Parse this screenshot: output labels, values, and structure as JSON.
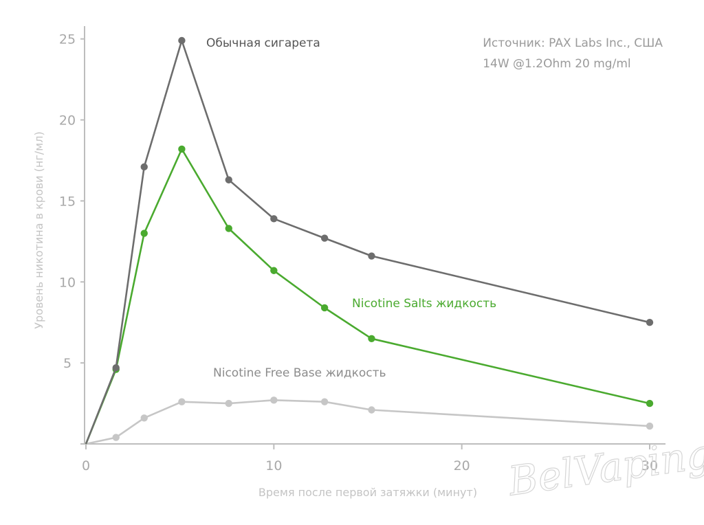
{
  "source": {
    "line1": "Источник: PAX Labs Inc., США",
    "line2": "14W @1.2Ohm 20 mg/ml"
  },
  "watermark": "BelVaping",
  "chart_data": {
    "type": "line",
    "xlabel": "Время после первой затяжки (минут)",
    "ylabel": "Уровень никотина в крови (нг/мл)",
    "xlim": [
      0,
      31
    ],
    "ylim": [
      0,
      26
    ],
    "xticks": [
      0,
      10,
      20,
      30
    ],
    "yticks": [
      5,
      10,
      15,
      20,
      25
    ],
    "grid": false,
    "series": [
      {
        "name": "Обычная сигарета",
        "color": "#6d6d6d",
        "x": [
          0,
          1.6,
          3.1,
          5.1,
          7.6,
          10.0,
          12.7,
          15.2,
          30.0
        ],
        "y": [
          0,
          4.7,
          17.1,
          24.9,
          16.3,
          13.9,
          12.7,
          11.6,
          7.5
        ]
      },
      {
        "name": "Nicotine Salts жидкость",
        "color": "#4aaa2f",
        "x": [
          0,
          1.6,
          3.1,
          5.1,
          7.6,
          10.0,
          12.7,
          15.2,
          30.0
        ],
        "y": [
          0,
          4.6,
          13.0,
          18.2,
          13.3,
          10.7,
          8.4,
          6.5,
          2.5
        ]
      },
      {
        "name": "Nicotine Free Base жидкость",
        "color": "#c6c6c6",
        "x": [
          0,
          1.6,
          3.1,
          5.1,
          7.6,
          10.0,
          12.7,
          15.2,
          30.0
        ],
        "y": [
          0,
          0.4,
          1.6,
          2.6,
          2.5,
          2.7,
          2.6,
          2.1,
          1.1
        ]
      }
    ]
  }
}
